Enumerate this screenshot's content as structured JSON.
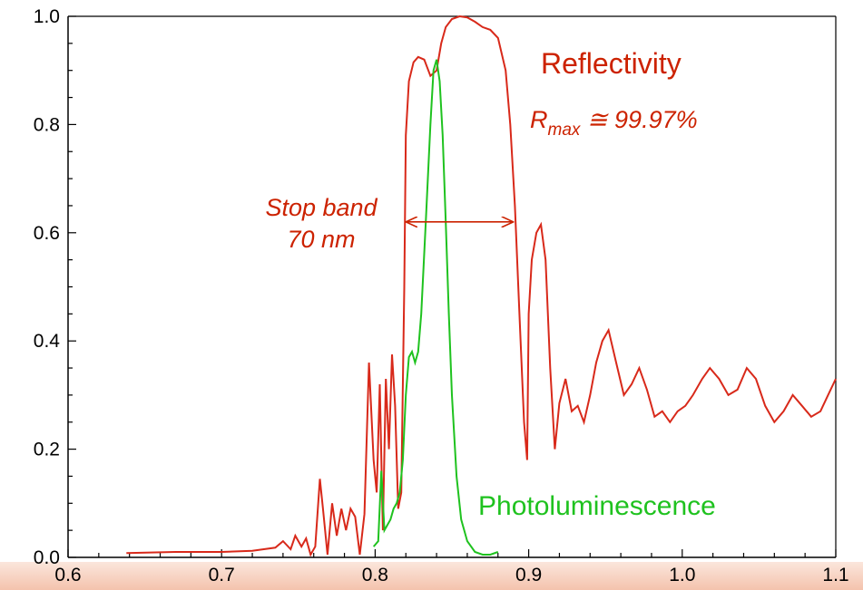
{
  "colors": {
    "reflectivity": "#d8291a",
    "photoluminescence": "#1fc21f",
    "annotation": "#cc2200",
    "band": "#f7d3c1"
  },
  "chart_data": {
    "type": "line",
    "title": "",
    "xlabel": "",
    "ylabel": "",
    "xlim": [
      0.6,
      1.1
    ],
    "ylim": [
      0.0,
      1.0
    ],
    "xticks": [
      "0.6",
      "0.7",
      "0.8",
      "0.9",
      "1.0",
      "1.1"
    ],
    "yticks": [
      "0.0",
      "0.2",
      "0.4",
      "0.6",
      "0.8",
      "1.0"
    ],
    "grid": false,
    "series": [
      {
        "name": "Reflectivity",
        "color": "#d8291a",
        "x": [
          0.638,
          0.67,
          0.7,
          0.72,
          0.735,
          0.74,
          0.745,
          0.748,
          0.752,
          0.755,
          0.758,
          0.761,
          0.764,
          0.766,
          0.769,
          0.772,
          0.775,
          0.778,
          0.781,
          0.784,
          0.787,
          0.79,
          0.793,
          0.796,
          0.799,
          0.801,
          0.803,
          0.805,
          0.807,
          0.809,
          0.811,
          0.813,
          0.815,
          0.817,
          0.819,
          0.82,
          0.822,
          0.825,
          0.828,
          0.832,
          0.836,
          0.84,
          0.843,
          0.846,
          0.85,
          0.855,
          0.86,
          0.865,
          0.87,
          0.875,
          0.88,
          0.885,
          0.888,
          0.891,
          0.894,
          0.897,
          0.899,
          0.9,
          0.902,
          0.905,
          0.908,
          0.911,
          0.914,
          0.917,
          0.92,
          0.924,
          0.928,
          0.932,
          0.936,
          0.94,
          0.944,
          0.948,
          0.952,
          0.957,
          0.962,
          0.967,
          0.972,
          0.977,
          0.982,
          0.987,
          0.992,
          0.997,
          1.002,
          1.007,
          1.013,
          1.018,
          1.024,
          1.03,
          1.036,
          1.042,
          1.048,
          1.054,
          1.06,
          1.066,
          1.072,
          1.078,
          1.084,
          1.09,
          1.095,
          1.1
        ],
        "values": [
          0.008,
          0.01,
          0.01,
          0.012,
          0.018,
          0.03,
          0.015,
          0.04,
          0.02,
          0.035,
          0.005,
          0.02,
          0.145,
          0.09,
          0.005,
          0.1,
          0.04,
          0.09,
          0.05,
          0.09,
          0.075,
          0.005,
          0.08,
          0.36,
          0.18,
          0.12,
          0.32,
          0.05,
          0.33,
          0.2,
          0.375,
          0.28,
          0.09,
          0.12,
          0.5,
          0.78,
          0.88,
          0.915,
          0.925,
          0.92,
          0.89,
          0.9,
          0.95,
          0.98,
          0.995,
          1.0,
          0.998,
          0.99,
          0.98,
          0.975,
          0.96,
          0.9,
          0.8,
          0.65,
          0.45,
          0.25,
          0.18,
          0.45,
          0.55,
          0.6,
          0.615,
          0.55,
          0.35,
          0.2,
          0.285,
          0.33,
          0.27,
          0.28,
          0.25,
          0.3,
          0.36,
          0.4,
          0.42,
          0.36,
          0.3,
          0.32,
          0.35,
          0.31,
          0.26,
          0.27,
          0.25,
          0.27,
          0.28,
          0.3,
          0.33,
          0.35,
          0.33,
          0.3,
          0.31,
          0.35,
          0.33,
          0.28,
          0.25,
          0.27,
          0.3,
          0.28,
          0.26,
          0.27,
          0.3,
          0.33
        ]
      },
      {
        "name": "Photoluminescence",
        "color": "#1fc21f",
        "x": [
          0.799,
          0.802,
          0.804,
          0.806,
          0.808,
          0.81,
          0.812,
          0.814,
          0.816,
          0.818,
          0.82,
          0.822,
          0.824,
          0.826,
          0.828,
          0.83,
          0.833,
          0.836,
          0.838,
          0.84,
          0.842,
          0.844,
          0.846,
          0.848,
          0.85,
          0.853,
          0.856,
          0.86,
          0.865,
          0.87,
          0.875,
          0.88
        ],
        "values": [
          0.02,
          0.03,
          0.16,
          0.05,
          0.06,
          0.07,
          0.09,
          0.1,
          0.12,
          0.18,
          0.3,
          0.37,
          0.38,
          0.36,
          0.38,
          0.45,
          0.62,
          0.8,
          0.9,
          0.92,
          0.88,
          0.78,
          0.62,
          0.45,
          0.3,
          0.15,
          0.07,
          0.03,
          0.01,
          0.005,
          0.005,
          0.01
        ]
      }
    ],
    "annotations": {
      "reflectivity_label": "Reflectivity",
      "rmax_symbol": "R",
      "rmax_subscript": "max",
      "rmax_value": " ≅ 99.97%",
      "stopband_line1": "Stop band",
      "stopband_line2": "70 nm",
      "pl_label": "Photoluminescence",
      "stopband_arrow": {
        "x_start": 0.82,
        "x_end": 0.89,
        "y": 0.62
      }
    }
  }
}
